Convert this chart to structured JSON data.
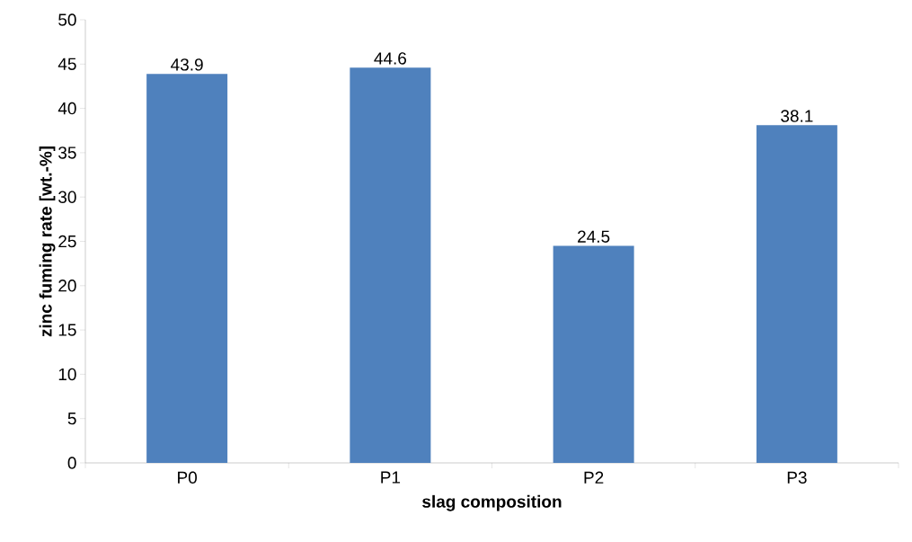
{
  "chart_data": {
    "type": "bar",
    "xlabel": "slag composition",
    "ylabel": "zinc fuming rate [wt.-%]",
    "categories": [
      "P0",
      "P1",
      "P2",
      "P3"
    ],
    "values": [
      43.9,
      44.6,
      24.5,
      38.1
    ],
    "color": "#4f81bd",
    "ylim": [
      0,
      50
    ],
    "yticks": [
      0,
      5,
      10,
      15,
      20,
      25,
      30,
      35,
      40,
      45,
      50
    ],
    "data_labels": true,
    "grid": false
  }
}
